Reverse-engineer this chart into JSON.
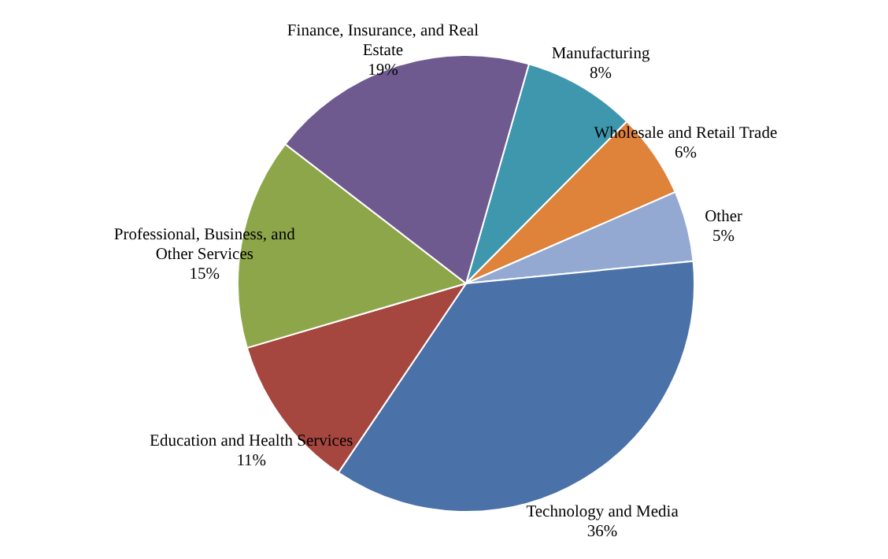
{
  "chart_data": {
    "type": "pie",
    "categories": [
      "Manufacturing",
      "Wholesale and Retail Trade",
      "Other",
      "Technology and Media",
      "Education and Health Services",
      "Professional, Business,  and Other Services",
      "Finance, Insurance, and Real Estate"
    ],
    "values": [
      8,
      6,
      5,
      36,
      11,
      15,
      19
    ],
    "colors": [
      "#3f97ae",
      "#df823a",
      "#93a9d1",
      "#4a72a8",
      "#a5463f",
      "#8ea64a",
      "#6e5a8e"
    ],
    "value_labels": [
      "8%",
      "6%",
      "5%",
      "36%",
      "11%",
      "15%",
      "19%"
    ]
  }
}
